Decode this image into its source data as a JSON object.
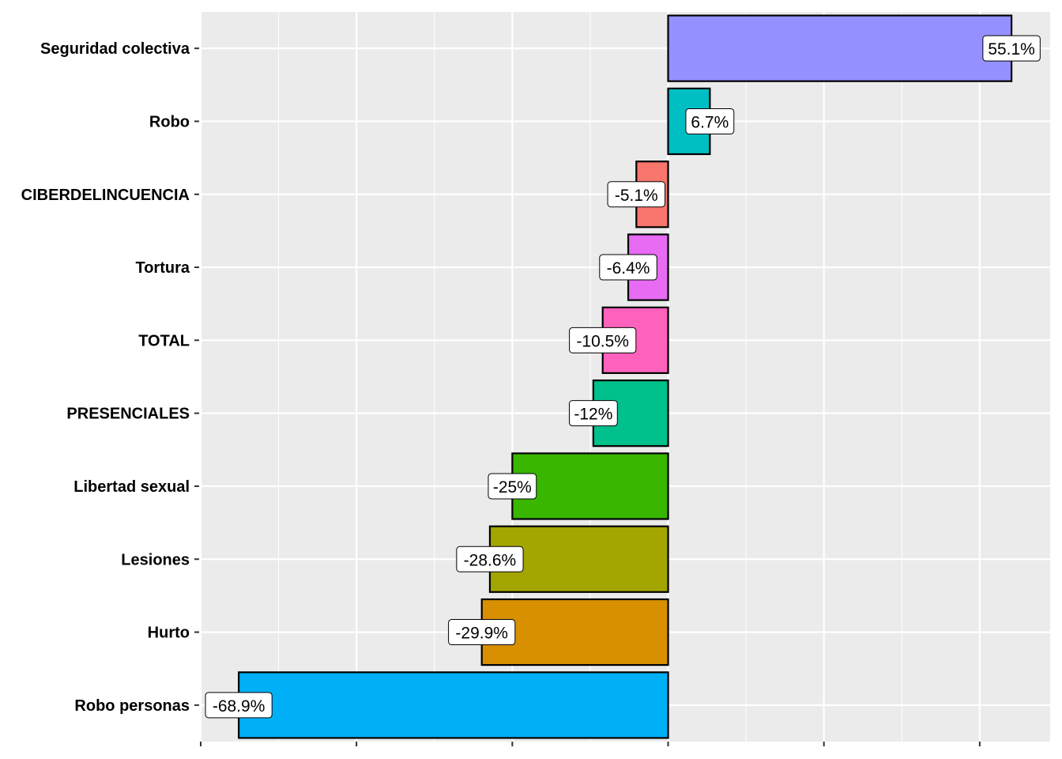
{
  "chart_data": {
    "type": "bar",
    "orientation": "horizontal",
    "title": "",
    "xlabel": "",
    "ylabel": "",
    "xlim": [
      -75,
      61.3
    ],
    "x_ticks": [
      -75,
      -50,
      -25,
      0,
      25,
      50
    ],
    "x_tick_labels_visible": false,
    "grid": true,
    "categories": [
      "Seguridad colectiva",
      "Robo",
      "CIBERDELINCUENCIA",
      "Tortura",
      "TOTAL",
      "PRESENCIALES",
      "Libertad sexual",
      "Lesiones",
      "Hurto",
      "Robo personas"
    ],
    "values": [
      55.1,
      6.7,
      -5.1,
      -6.4,
      -10.5,
      -12,
      -25,
      -28.6,
      -29.9,
      -68.9
    ],
    "labels": [
      "55.1%",
      "6.7%",
      "-5.1%",
      "-6.4%",
      "-10.5%",
      "-12%",
      "-25%",
      "-28.6%",
      "-29.9%",
      "-68.9%"
    ],
    "colors": [
      "#9590FF",
      "#00BFC4",
      "#F8766D",
      "#E76BF3",
      "#FF62BC",
      "#00C08B",
      "#39B600",
      "#A3A500",
      "#D89000",
      "#00B0F6"
    ],
    "panel_background": "#EBEBEB",
    "legend": "none"
  }
}
